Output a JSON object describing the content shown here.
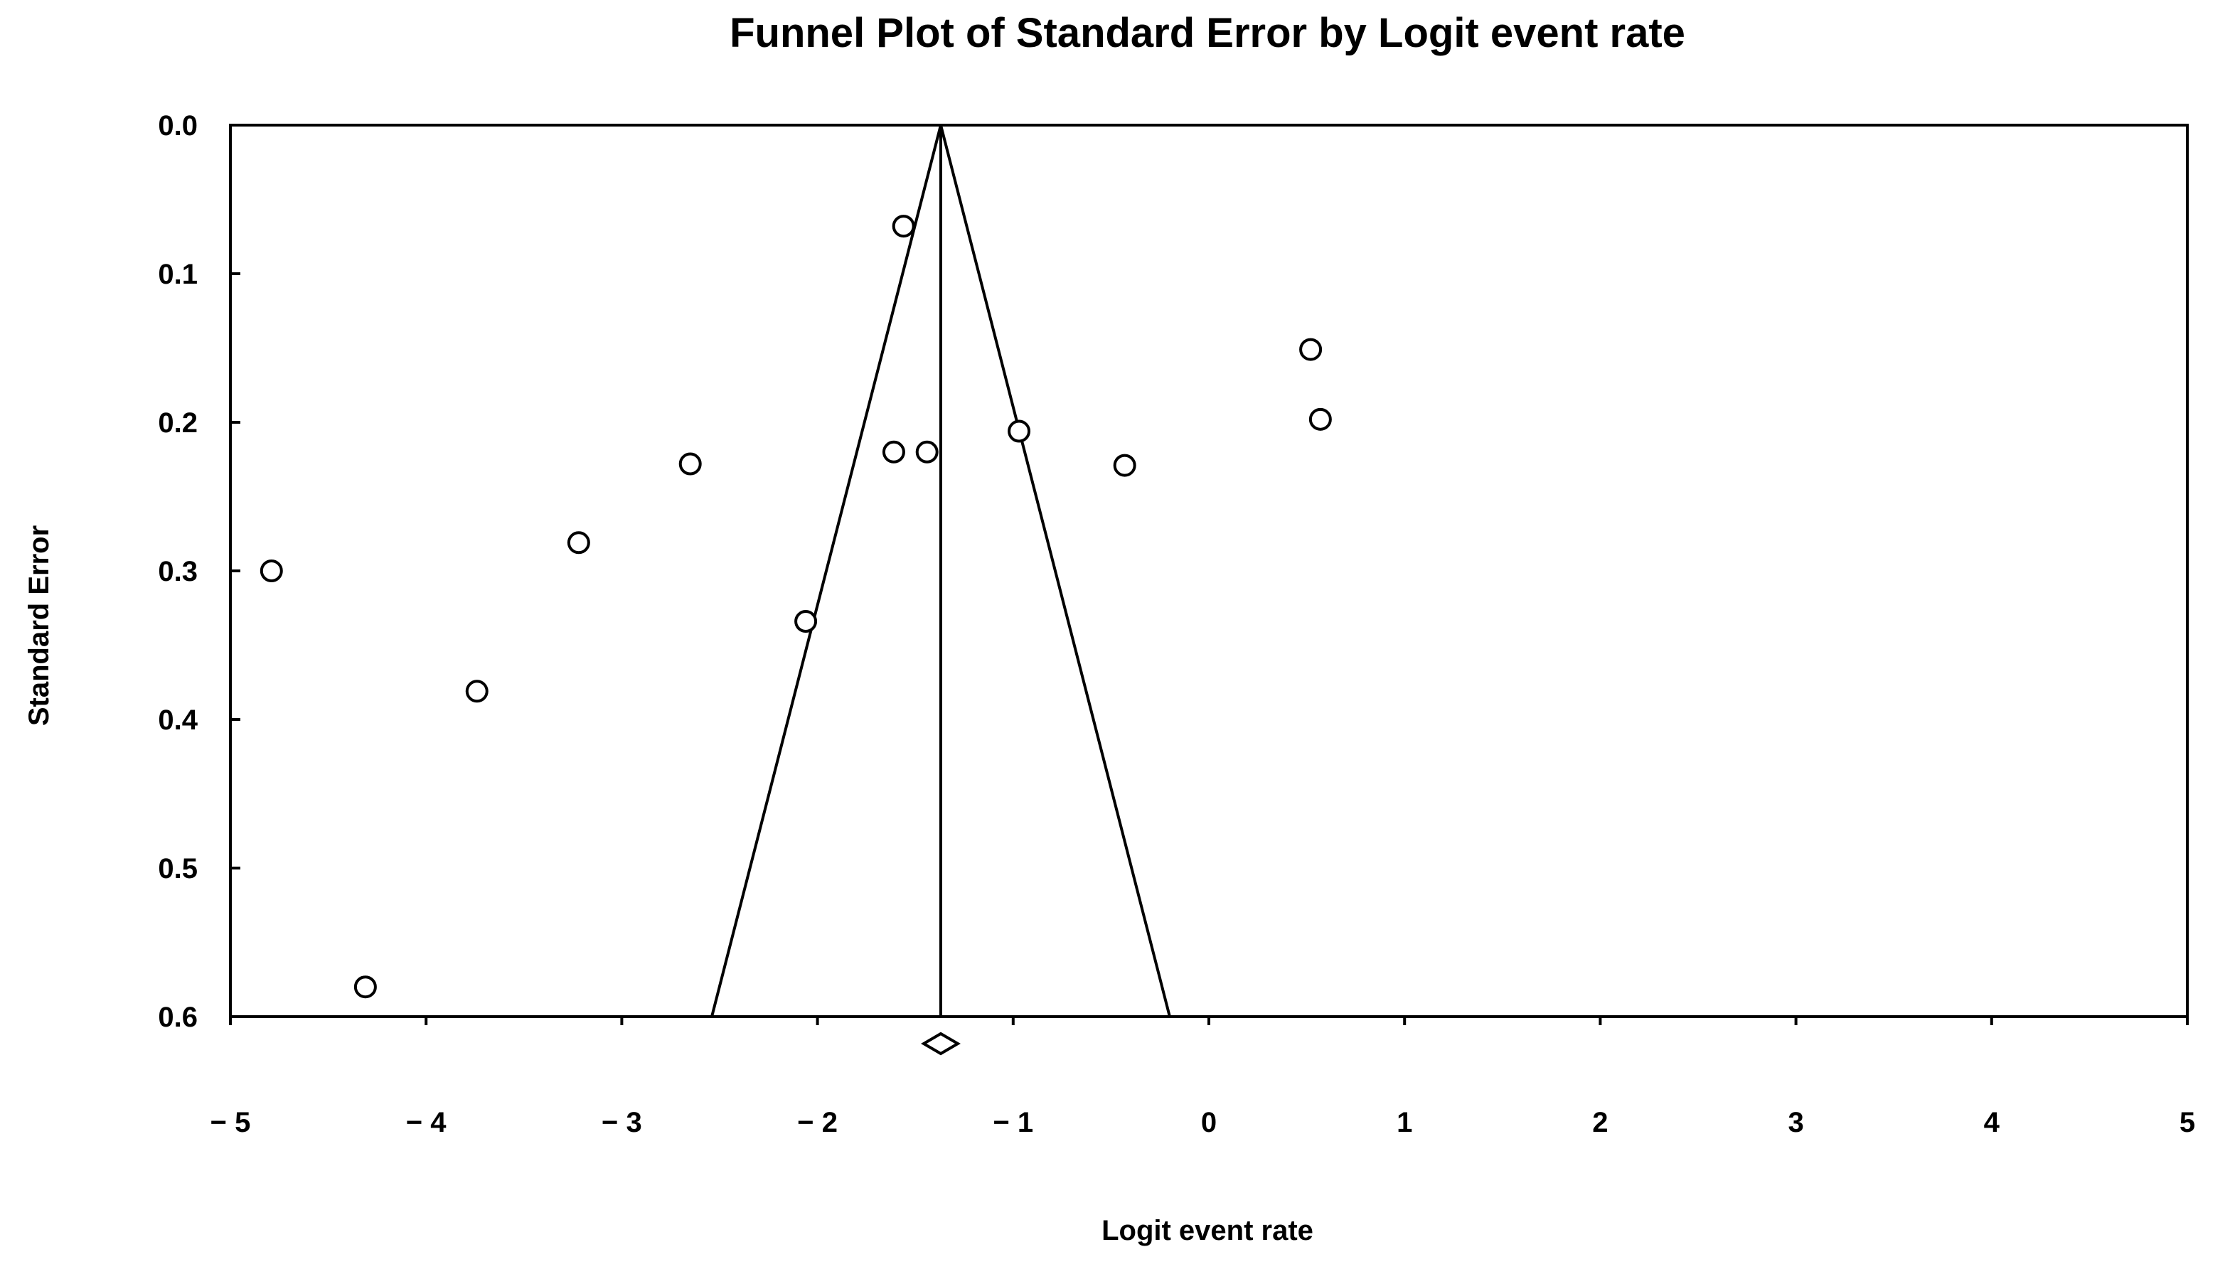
{
  "chart_data": {
    "type": "scatter",
    "title": "Funnel Plot of Standard Error by Logit event rate",
    "xlabel": "Logit event rate",
    "ylabel": "Standard Error",
    "xlim": [
      -5,
      5
    ],
    "ylim": [
      0.0,
      0.6
    ],
    "y_axis_inverted": true,
    "x_ticks": [
      {
        "value": -5,
        "label": "− 5"
      },
      {
        "value": -4,
        "label": "− 4"
      },
      {
        "value": -3,
        "label": "− 3"
      },
      {
        "value": -2,
        "label": "− 2"
      },
      {
        "value": -1,
        "label": "− 1"
      },
      {
        "value": 0,
        "label": "0"
      },
      {
        "value": 1,
        "label": "1"
      },
      {
        "value": 2,
        "label": "2"
      },
      {
        "value": 3,
        "label": "3"
      },
      {
        "value": 4,
        "label": "4"
      },
      {
        "value": 5,
        "label": "5"
      }
    ],
    "y_ticks": [
      {
        "value": 0.0,
        "label": "0.0"
      },
      {
        "value": 0.1,
        "label": "0.1"
      },
      {
        "value": 0.2,
        "label": "0.2"
      },
      {
        "value": 0.3,
        "label": "0.3"
      },
      {
        "value": 0.4,
        "label": "0.4"
      },
      {
        "value": 0.5,
        "label": "0.5"
      },
      {
        "value": 0.6,
        "label": "0.6"
      }
    ],
    "grid": false,
    "pooled_estimate": -1.37,
    "funnel_limits_at_bottom": [
      -2.54,
      -0.2
    ],
    "points": [
      {
        "x": -1.56,
        "y": 0.068
      },
      {
        "x": 0.52,
        "y": 0.151
      },
      {
        "x": 0.57,
        "y": 0.198
      },
      {
        "x": -0.97,
        "y": 0.206
      },
      {
        "x": -1.61,
        "y": 0.22
      },
      {
        "x": -1.44,
        "y": 0.22
      },
      {
        "x": -2.65,
        "y": 0.228
      },
      {
        "x": -0.43,
        "y": 0.229
      },
      {
        "x": -3.22,
        "y": 0.281
      },
      {
        "x": -4.79,
        "y": 0.3
      },
      {
        "x": -2.06,
        "y": 0.334
      },
      {
        "x": -3.74,
        "y": 0.381
      },
      {
        "x": -4.31,
        "y": 0.58
      }
    ]
  }
}
